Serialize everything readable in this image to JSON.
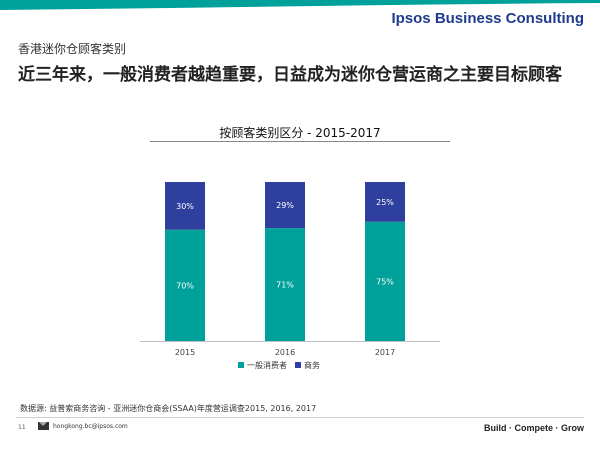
{
  "header": {
    "brand": "Ipsos Business Consulting",
    "accent_color": "#1f3c8c",
    "teal_color": "#00a19a"
  },
  "page": {
    "subtitle": "香港迷你仓顾客类别",
    "headline": "近三年来，一般消费者越趋重要，日益成为迷你仓营运商之主要目标顾客"
  },
  "chart_data": {
    "type": "bar",
    "stacked": true,
    "title": "按顾客类别区分 - 2015-2017",
    "categories": [
      "2015",
      "2016",
      "2017"
    ],
    "series": [
      {
        "name": "一般消费者",
        "values": [
          70,
          71,
          75
        ],
        "labels": [
          "70%",
          "71%",
          "75%"
        ],
        "color": "#00a19a"
      },
      {
        "name": "商务",
        "values": [
          30,
          29,
          25
        ],
        "labels": [
          "30%",
          "29%",
          "25%"
        ],
        "color": "#2e3f9e"
      }
    ],
    "ylim": [
      0,
      100
    ],
    "grid": false,
    "legend_position": "bottom"
  },
  "footer": {
    "source": "数据源: 益普索商务咨询 - 亚洲迷你仓商会(SSAA)年度营运调查2015, 2016, 2017",
    "page_number": "11",
    "email": "hongkong.bc@ipsos.com",
    "tagline": "Build · Compete · Grow"
  }
}
